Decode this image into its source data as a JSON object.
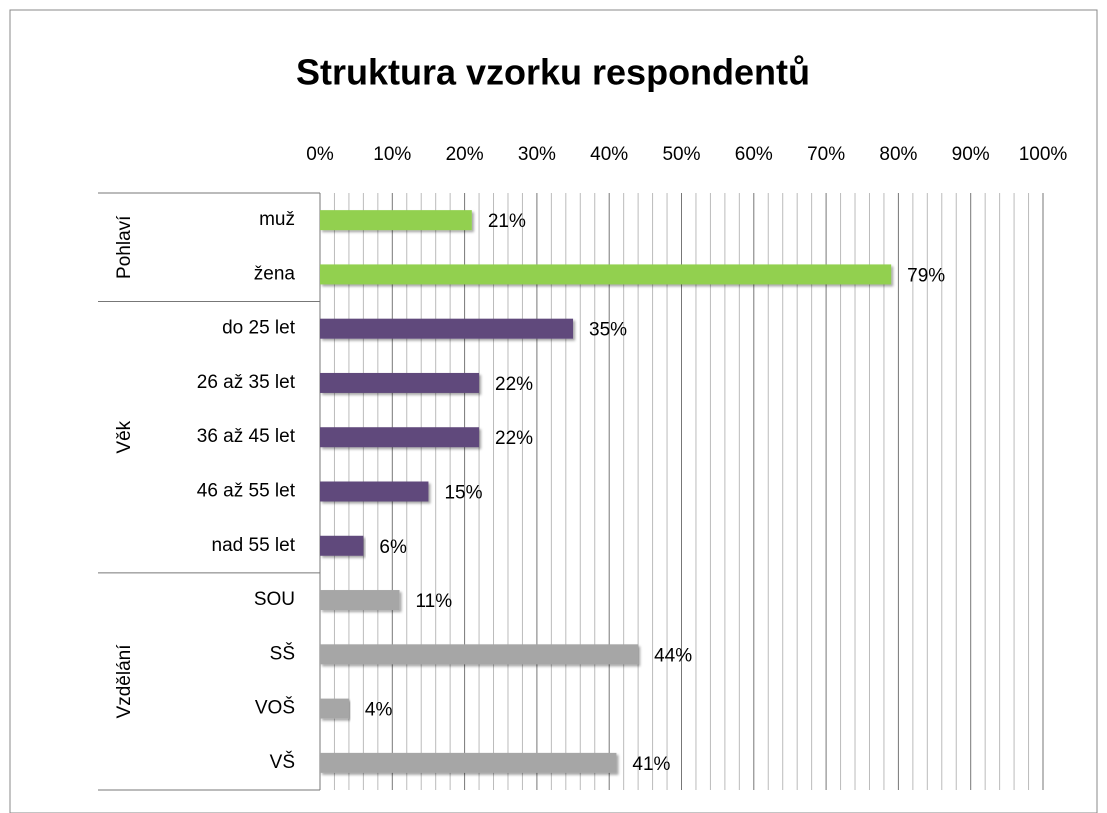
{
  "chart_data": {
    "type": "bar",
    "orientation": "horizontal",
    "title": "Struktura vzorku respondentů",
    "groups": [
      {
        "name": "Pohlaví",
        "color": "#92d050",
        "categories": [
          "muž",
          "žena"
        ],
        "values": [
          21,
          79
        ],
        "value_labels": [
          "21%",
          "79%"
        ]
      },
      {
        "name": "Věk",
        "color": "#604a7b",
        "categories": [
          "do 25 let",
          "26 až 35 let",
          "36 až 45 let",
          "46 až 55 let",
          "nad 55 let"
        ],
        "values": [
          35,
          22,
          22,
          15,
          6
        ],
        "value_labels": [
          "35%",
          "22%",
          "22%",
          "15%",
          "6%"
        ]
      },
      {
        "name": "Vzdělání",
        "color": "#a6a6a6",
        "categories": [
          "SOU",
          "SŠ",
          "VOŠ",
          "VŠ"
        ],
        "values": [
          11,
          44,
          4,
          41
        ],
        "value_labels": [
          "11%",
          "44%",
          "4%",
          "41%"
        ]
      }
    ],
    "xlim": [
      0,
      100
    ],
    "xticks": [
      {
        "value": 0,
        "label": "0%"
      },
      {
        "value": 10,
        "label": "10%"
      },
      {
        "value": 20,
        "label": "20%"
      },
      {
        "value": 30,
        "label": "30%"
      },
      {
        "value": 40,
        "label": "40%"
      },
      {
        "value": 50,
        "label": "50%"
      },
      {
        "value": 60,
        "label": "60%"
      },
      {
        "value": 70,
        "label": "70%"
      },
      {
        "value": 80,
        "label": "80%"
      },
      {
        "value": 90,
        "label": "90%"
      },
      {
        "value": 100,
        "label": "100%"
      }
    ],
    "xminorticks": [
      2,
      4,
      6,
      8,
      12,
      14,
      16,
      18,
      22,
      24,
      26,
      28,
      32,
      34,
      36,
      38,
      42,
      44,
      46,
      48,
      52,
      54,
      56,
      58,
      62,
      64,
      66,
      68,
      72,
      74,
      76,
      78,
      82,
      84,
      86,
      88,
      92,
      94,
      96,
      98
    ],
    "grid": true,
    "axis_position": "top"
  }
}
